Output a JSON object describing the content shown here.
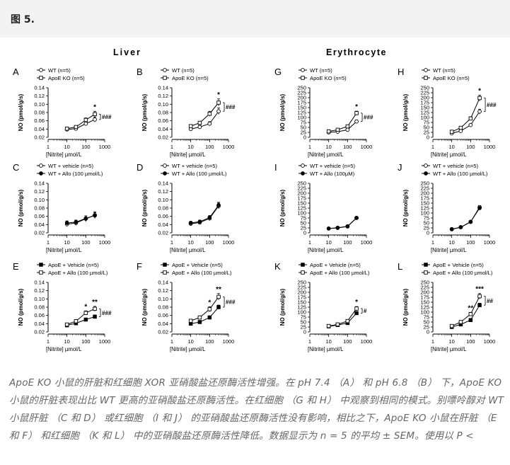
{
  "header": {
    "title": "图 5."
  },
  "figure": {
    "section_titles": [
      "Liver",
      "Erythrocyte"
    ],
    "x_label": "[Nitrite] µmol/L",
    "y_label": "NO (pmol/g/s)",
    "x_ticks": [
      "1",
      "10",
      "100",
      "1000"
    ]
  },
  "chart_data": [
    {
      "panel": "A",
      "type": "line",
      "xscale": "log",
      "x": [
        10,
        30,
        100,
        300
      ],
      "ylim": [
        0.02,
        0.14
      ],
      "yticks": [
        "0.02",
        "0.04",
        "0.06",
        "0.08",
        "0.10",
        "0.12",
        "0.14"
      ],
      "series": [
        {
          "name": "WT (n=5)",
          "marker": "circle-open",
          "values": [
            0.039,
            0.041,
            0.053,
            0.063
          ],
          "err": [
            0.003,
            0.003,
            0.004,
            0.006
          ]
        },
        {
          "name": "ApoE KO (n=5)",
          "marker": "square-open",
          "values": [
            0.041,
            0.045,
            0.062,
            0.076
          ],
          "err": [
            0.003,
            0.003,
            0.005,
            0.007
          ]
        }
      ],
      "annotations": [
        "*",
        "###"
      ]
    },
    {
      "panel": "B",
      "type": "line",
      "xscale": "log",
      "x": [
        10,
        30,
        100,
        300
      ],
      "ylim": [
        0.02,
        0.14
      ],
      "yticks": [
        "0.02",
        "0.04",
        "0.06",
        "0.08",
        "0.10",
        "0.12",
        "0.14"
      ],
      "series": [
        {
          "name": "WT (n=5)",
          "marker": "circle-open",
          "values": [
            0.04,
            0.045,
            0.053,
            0.083
          ],
          "err": [
            0.004,
            0.004,
            0.005,
            0.008
          ]
        },
        {
          "name": "ApoE KO (n=5)",
          "marker": "square-open",
          "values": [
            0.047,
            0.055,
            0.077,
            0.104
          ],
          "err": [
            0.004,
            0.004,
            0.006,
            0.009
          ]
        }
      ],
      "annotations": [
        "*",
        "###"
      ]
    },
    {
      "panel": "G",
      "type": "line",
      "xscale": "log",
      "x": [
        10,
        30,
        100,
        300
      ],
      "ylim": [
        0,
        250
      ],
      "yticks": [
        "0",
        "25",
        "50",
        "75",
        "100",
        "125",
        "150",
        "175",
        "200",
        "225",
        "250"
      ],
      "series": [
        {
          "name": "WT (n=5)",
          "marker": "circle-open",
          "values": [
            25,
            28,
            38,
            80
          ],
          "err": [
            4,
            4,
            5,
            8
          ]
        },
        {
          "name": "ApoE KO (n=5)",
          "marker": "square-open",
          "values": [
            30,
            38,
            55,
            122
          ],
          "err": [
            5,
            5,
            6,
            10
          ]
        }
      ],
      "annotations": [
        "*",
        "###"
      ]
    },
    {
      "panel": "H",
      "type": "line",
      "xscale": "log",
      "x": [
        10,
        30,
        100,
        300
      ],
      "ylim": [
        0,
        250
      ],
      "yticks": [
        "0",
        "25",
        "50",
        "75",
        "100",
        "125",
        "150",
        "175",
        "200",
        "225",
        "250"
      ],
      "series": [
        {
          "name": "WT (n=5)",
          "marker": "circle-open",
          "values": [
            20,
            32,
            62,
            130
          ],
          "err": [
            4,
            5,
            6,
            12
          ]
        },
        {
          "name": "ApoE KO (n=5)",
          "marker": "square-open",
          "values": [
            28,
            48,
            95,
            198
          ],
          "err": [
            5,
            6,
            9,
            15
          ]
        }
      ],
      "annotations": [
        "*",
        "###"
      ]
    },
    {
      "panel": "C",
      "type": "line",
      "xscale": "log",
      "x": [
        10,
        30,
        100,
        300
      ],
      "ylim": [
        0.02,
        0.14
      ],
      "yticks": [
        "0.02",
        "0.04",
        "0.06",
        "0.08",
        "0.10",
        "0.12",
        "0.14"
      ],
      "series": [
        {
          "name": "WT + vehicle (n=5)",
          "marker": "circle-open",
          "values": [
            0.041,
            0.044,
            0.054,
            0.063
          ],
          "err": [
            0.006,
            0.006,
            0.007,
            0.008
          ]
        },
        {
          "name": "WT + Allo (100 µmol/L)",
          "marker": "circle-filled",
          "values": [
            0.044,
            0.046,
            0.055,
            0.062
          ],
          "err": [
            0.005,
            0.005,
            0.006,
            0.007
          ]
        }
      ],
      "annotations": []
    },
    {
      "panel": "D",
      "type": "line",
      "xscale": "log",
      "x": [
        10,
        30,
        100,
        300
      ],
      "ylim": [
        0.02,
        0.14
      ],
      "yticks": [
        "0.02",
        "0.04",
        "0.06",
        "0.08",
        "0.10",
        "0.12",
        "0.14"
      ],
      "series": [
        {
          "name": "WT + vehicle (n=5)",
          "marker": "circle-open",
          "values": [
            0.042,
            0.045,
            0.055,
            0.085
          ],
          "err": [
            0.004,
            0.004,
            0.005,
            0.007
          ]
        },
        {
          "name": "WT + Allo (100 µmol/L)",
          "marker": "circle-filled",
          "values": [
            0.044,
            0.047,
            0.057,
            0.087
          ],
          "err": [
            0.004,
            0.004,
            0.005,
            0.007
          ]
        }
      ],
      "annotations": []
    },
    {
      "panel": "I",
      "type": "line",
      "xscale": "log",
      "x": [
        10,
        30,
        100,
        300
      ],
      "ylim": [
        0,
        250
      ],
      "yticks": [
        "0",
        "25",
        "50",
        "75",
        "100",
        "125",
        "150",
        "175",
        "200",
        "225",
        "250"
      ],
      "series": [
        {
          "name": "WT + vehicle (n=5)",
          "marker": "circle-open",
          "values": [
            22,
            25,
            32,
            75
          ],
          "err": [
            2,
            2,
            3,
            4
          ]
        },
        {
          "name": "WT + Allo (100µM)",
          "marker": "circle-filled",
          "values": [
            22,
            26,
            33,
            76
          ],
          "err": [
            2,
            2,
            3,
            4
          ]
        }
      ],
      "annotations": []
    },
    {
      "panel": "J",
      "type": "line",
      "xscale": "log",
      "x": [
        10,
        30,
        100,
        300
      ],
      "ylim": [
        0,
        250
      ],
      "yticks": [
        "0",
        "25",
        "50",
        "75",
        "100",
        "125",
        "150",
        "175",
        "200",
        "225",
        "250"
      ],
      "series": [
        {
          "name": "WT + vehicle (n=5)",
          "marker": "circle-open",
          "values": [
            18,
            28,
            55,
            130
          ],
          "err": [
            3,
            3,
            4,
            8
          ]
        },
        {
          "name": "WT + Allo (100 µmol/L)",
          "marker": "circle-filled",
          "values": [
            19,
            29,
            56,
            125
          ],
          "err": [
            3,
            3,
            4,
            8
          ]
        }
      ],
      "annotations": []
    },
    {
      "panel": "E",
      "type": "line",
      "xscale": "log",
      "x": [
        10,
        30,
        100,
        300
      ],
      "ylim": [
        0.02,
        0.14
      ],
      "yticks": [
        "0.02",
        "0.04",
        "0.06",
        "0.08",
        "0.10",
        "0.12",
        "0.14"
      ],
      "series": [
        {
          "name": "ApoE + Vehicle (n=5)",
          "marker": "square-filled",
          "values": [
            0.036,
            0.041,
            0.05,
            0.057
          ],
          "err": [
            0.002,
            0.003,
            0.003,
            0.004
          ]
        },
        {
          "name": "ApoE + Allo (100 µmol/L)",
          "marker": "square-open",
          "values": [
            0.038,
            0.046,
            0.066,
            0.076
          ],
          "err": [
            0.003,
            0.003,
            0.005,
            0.006
          ]
        }
      ],
      "annotations": [
        "*",
        "**",
        "###"
      ]
    },
    {
      "panel": "F",
      "type": "line",
      "xscale": "log",
      "x": [
        10,
        30,
        100,
        300
      ],
      "ylim": [
        0.02,
        0.14
      ],
      "yticks": [
        "0.02",
        "0.04",
        "0.06",
        "0.08",
        "0.10",
        "0.12",
        "0.14"
      ],
      "series": [
        {
          "name": "ApoE + Vehicle (n=5)",
          "marker": "square-filled",
          "values": [
            0.04,
            0.044,
            0.055,
            0.08
          ],
          "err": [
            0.003,
            0.003,
            0.004,
            0.005
          ]
        },
        {
          "name": "ApoE + Allo (100 µmol/L)",
          "marker": "square-open",
          "values": [
            0.047,
            0.055,
            0.075,
            0.105
          ],
          "err": [
            0.004,
            0.004,
            0.006,
            0.008
          ]
        }
      ],
      "annotations": [
        "*",
        "**",
        "###"
      ]
    },
    {
      "panel": "K",
      "type": "line",
      "xscale": "log",
      "x": [
        10,
        30,
        100,
        300
      ],
      "ylim": [
        0,
        250
      ],
      "yticks": [
        "0",
        "25",
        "50",
        "75",
        "100",
        "125",
        "150",
        "175",
        "200",
        "225",
        "250"
      ],
      "series": [
        {
          "name": "ApoE + Vehicle (n=5)",
          "marker": "square-filled",
          "values": [
            28,
            35,
            45,
            95
          ],
          "err": [
            3,
            4,
            5,
            8
          ]
        },
        {
          "name": "ApoE + Allo (100 µmol/L)",
          "marker": "square-open",
          "values": [
            30,
            38,
            55,
            118
          ],
          "err": [
            4,
            5,
            6,
            10
          ]
        }
      ],
      "annotations": [
        "*",
        "#"
      ]
    },
    {
      "panel": "L",
      "type": "line",
      "xscale": "log",
      "x": [
        10,
        30,
        100,
        300
      ],
      "ylim": [
        0,
        250
      ],
      "yticks": [
        "0",
        "25",
        "50",
        "75",
        "100",
        "125",
        "150",
        "175",
        "200",
        "225",
        "250"
      ],
      "series": [
        {
          "name": "ApoE + Vehicle (n=5)",
          "marker": "square-filled",
          "values": [
            25,
            38,
            60,
            135
          ],
          "err": [
            4,
            5,
            6,
            10
          ]
        },
        {
          "name": "ApoE + Allo (100 µmol/L)",
          "marker": "square-open",
          "values": [
            30,
            50,
            90,
            180
          ],
          "err": [
            5,
            6,
            9,
            14
          ]
        }
      ],
      "annotations": [
        "**",
        "***",
        "##"
      ]
    }
  ],
  "caption": "ApoE KO 小鼠的肝脏和红细胞 XOR 亚硝酸盐还原酶活性增强。在 pH 7.4 （A） 和 pH 6.8 （B） 下，ApoE KO 小鼠的肝脏表现出比 WT 更高的亚硝酸盐还原酶活性。在红细胞 （G 和 H） 中观察到相同的模式。别嘌呤醇对 WT 小鼠肝脏 （C 和 D） 或红细胞 （I 和 J） 的亚硝酸盐还原酶活性没有影响，相比之下，ApoE KO 小鼠在肝脏 （E 和 F） 和红细胞 （K 和 L） 中的亚硝酸盐还原酶活性降低。数据显示为 n = 5 的平均 ± SEM。使用以 P <"
}
